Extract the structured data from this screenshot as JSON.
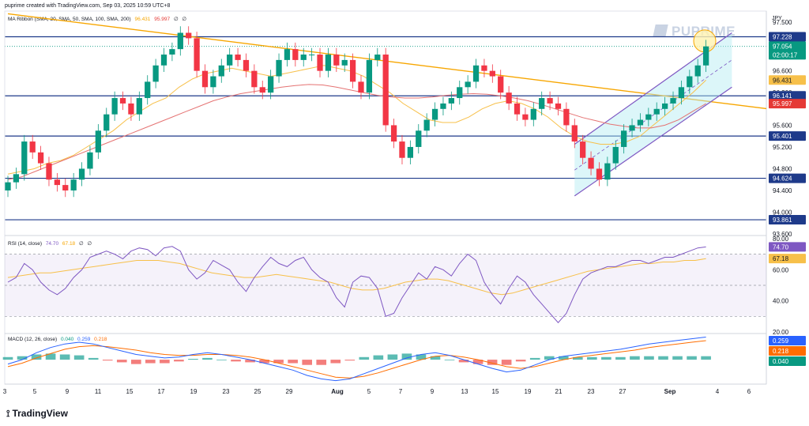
{
  "header": {
    "credit": "puprime created with TradingView.com, Sep 03, 2025 10:59 UTC+8"
  },
  "watermark": "PUPRIME",
  "currency": "JPY",
  "branding": {
    "logo_text": "TradingView",
    "icon": "tradingview-logo-icon"
  },
  "colors": {
    "bull": "#089981",
    "bear": "#f23645",
    "trend": "#f7a600",
    "channel": "#7e57c2",
    "level": "#1e3a8a",
    "sma20": "#f7c04a",
    "sma_long": "#e57373",
    "rsi": "#7e57c2",
    "rsi_ma": "#f7c04a",
    "macd": "#2962ff",
    "signal": "#ff6d00"
  },
  "legends": {
    "price": {
      "name": "MA Ribbon (SMA, 20, SMA, 50, SMA, 100, SMA, 200)",
      "v1": "96.431",
      "v2": "95.997",
      "v3": "∅",
      "v4": "∅"
    },
    "rsi": {
      "name": "RSI (14, close)",
      "v1": "74.70",
      "v2": "67.18",
      "v3": "∅",
      "v4": "∅"
    },
    "macd": {
      "name": "MACD (12, 26, close)",
      "v1": "0.040",
      "v2": "0.259",
      "v3": "0.218"
    }
  },
  "chart_data": [
    {
      "type": "candlestick",
      "symbol_currency": "JPY",
      "y_ticks": [
        "97.500",
        "97.000",
        "96.600",
        "96.200",
        "95.600",
        "95.200",
        "94.800",
        "94.400",
        "94.000",
        "93.600"
      ],
      "ylim": [
        93.6,
        97.7
      ],
      "x_ticks": [
        "3",
        "5",
        "9",
        "11",
        "15",
        "17",
        "19",
        "23",
        "25",
        "29",
        "Aug",
        "5",
        "7",
        "9",
        "13",
        "15",
        "19",
        "21",
        "23",
        "27",
        "Sep",
        "4",
        "6"
      ],
      "levels": [
        97.228,
        96.141,
        95.401,
        94.624,
        93.861
      ],
      "price_tags": [
        {
          "label": "97.228",
          "style": "level"
        },
        {
          "label": "97.054",
          "style": "last"
        },
        {
          "label": "02:00:17",
          "style": "last"
        },
        {
          "label": "96.431",
          "style": "sma20"
        },
        {
          "label": "96.141",
          "style": "level"
        },
        {
          "label": "95.997",
          "style": "sma_long"
        },
        {
          "label": "95.401",
          "style": "level"
        },
        {
          "label": "94.624",
          "style": "level"
        },
        {
          "label": "93.861",
          "style": "level"
        }
      ],
      "closes": [
        94.55,
        94.7,
        95.3,
        95.1,
        94.9,
        94.6,
        94.5,
        94.4,
        94.6,
        94.8,
        95.1,
        95.5,
        95.8,
        96.1,
        96.0,
        95.8,
        96.1,
        96.4,
        96.7,
        96.9,
        97.0,
        97.3,
        97.2,
        96.6,
        96.3,
        96.5,
        96.7,
        96.9,
        96.8,
        96.6,
        96.3,
        96.2,
        96.5,
        96.8,
        97.0,
        96.8,
        96.9,
        96.9,
        96.6,
        96.9,
        96.7,
        96.8,
        96.4,
        96.2,
        96.8,
        96.9,
        95.6,
        95.3,
        95.0,
        95.2,
        95.5,
        95.7,
        95.9,
        96.0,
        96.1,
        96.3,
        96.4,
        96.7,
        96.6,
        96.5,
        96.2,
        96.0,
        95.8,
        95.7,
        95.9,
        96.1,
        96.0,
        95.9,
        95.6,
        95.3,
        95.0,
        94.8,
        94.6,
        94.9,
        95.2,
        95.5,
        95.6,
        95.7,
        95.8,
        95.9,
        96.0,
        96.1,
        96.3,
        96.5,
        96.7,
        97.05
      ],
      "sma20": [
        94.7,
        94.75,
        94.8,
        94.9,
        94.95,
        95.05,
        95.2,
        95.35,
        95.5,
        95.7,
        95.85,
        96.0,
        96.1,
        96.3,
        96.45,
        96.55,
        96.6,
        96.65,
        96.6,
        96.55,
        96.5,
        96.55,
        96.6,
        96.65,
        96.7,
        96.65,
        96.6,
        96.5,
        96.35,
        96.2,
        96.0,
        95.85,
        95.7,
        95.65,
        95.65,
        95.75,
        95.9,
        96.0,
        96.05,
        96.0,
        95.9,
        95.75,
        95.55,
        95.4,
        95.3,
        95.25,
        95.25,
        95.3,
        95.4,
        95.6,
        95.8,
        96.0,
        96.2,
        96.43
      ],
      "sma_long": [
        94.6,
        94.65,
        94.75,
        94.85,
        94.95,
        95.05,
        95.15,
        95.25,
        95.35,
        95.45,
        95.55,
        95.65,
        95.75,
        95.85,
        95.95,
        96.05,
        96.12,
        96.18,
        96.22,
        96.26,
        96.3,
        96.33,
        96.35,
        96.34,
        96.3,
        96.25,
        96.2,
        96.15,
        96.12,
        96.1,
        96.1,
        96.12,
        96.15,
        96.17,
        96.18,
        96.17,
        96.14,
        96.1,
        96.05,
        95.98,
        95.9,
        95.82,
        95.74,
        95.68,
        95.62,
        95.58,
        95.55,
        95.55,
        95.6,
        95.7,
        95.85,
        95.997
      ],
      "trendline": {
        "from": {
          "bar": 0,
          "y": 97.65
        },
        "to": {
          "bar": 90,
          "y": 95.95
        }
      },
      "channel": {
        "lower": {
          "from_bar": 69,
          "from_y": 94.3,
          "to_bar": 87,
          "to_y": 96.3
        },
        "upper": {
          "from_bar": 69,
          "from_y": 95.25,
          "to_bar": 87,
          "to_y": 97.3
        }
      }
    },
    {
      "type": "line",
      "name": "RSI (14, close)",
      "y_ticks": [
        "80.00",
        "60.00",
        "40.00",
        "20.00"
      ],
      "ylim": [
        20,
        82
      ],
      "bands": [
        70,
        50,
        30
      ],
      "value_tags": [
        "74.70",
        "67.18"
      ],
      "rsi": [
        52,
        55,
        64,
        60,
        52,
        47,
        44,
        48,
        55,
        60,
        68,
        70,
        72,
        70,
        67,
        72,
        74,
        73,
        69,
        74,
        75,
        72,
        60,
        54,
        58,
        66,
        63,
        60,
        52,
        46,
        55,
        62,
        68,
        64,
        62,
        66,
        68,
        60,
        55,
        52,
        42,
        36,
        52,
        56,
        55,
        48,
        30,
        32,
        42,
        50,
        58,
        54,
        62,
        60,
        56,
        64,
        70,
        66,
        52,
        44,
        38,
        48,
        56,
        52,
        44,
        38,
        32,
        26,
        32,
        44,
        54,
        58,
        60,
        62,
        62,
        64,
        66,
        66,
        64,
        66,
        68,
        68,
        70,
        72,
        74,
        74.7
      ],
      "rsi_ma": [
        55,
        56,
        57,
        58,
        58,
        59,
        60,
        61,
        62,
        63,
        64,
        65,
        66,
        66,
        66,
        65,
        64,
        62,
        60,
        58,
        57,
        56,
        55,
        55,
        56,
        57,
        56,
        55,
        54,
        53,
        52,
        50,
        48,
        47,
        47,
        48,
        50,
        52,
        53,
        54,
        54,
        53,
        51,
        49,
        47,
        45,
        44,
        45,
        47,
        49,
        51,
        53,
        55,
        57,
        59,
        60,
        61,
        62,
        63,
        64,
        64,
        65,
        65,
        66,
        66,
        67.18
      ]
    },
    {
      "type": "histogram+line",
      "name": "MACD (12, 26, close)",
      "value_tags": [
        "0.259",
        "0.218",
        "0.040"
      ],
      "macd": [
        -0.05,
        0.0,
        0.08,
        0.14,
        0.18,
        0.2,
        0.18,
        0.14,
        0.1,
        0.06,
        0.04,
        0.02,
        0.03,
        0.06,
        0.08,
        0.06,
        0.03,
        0.0,
        -0.04,
        -0.08,
        -0.12,
        -0.18,
        -0.22,
        -0.24,
        -0.22,
        -0.16,
        -0.1,
        -0.04,
        0.02,
        0.06,
        0.08,
        0.05,
        0.0,
        -0.05,
        -0.1,
        -0.14,
        -0.12,
        -0.06,
        0.0,
        0.04,
        0.06,
        0.08,
        0.1,
        0.12,
        0.15,
        0.18,
        0.2,
        0.22,
        0.24,
        0.259
      ],
      "signal": [
        -0.08,
        -0.04,
        0.02,
        0.07,
        0.12,
        0.15,
        0.16,
        0.15,
        0.13,
        0.11,
        0.08,
        0.06,
        0.05,
        0.05,
        0.06,
        0.06,
        0.05,
        0.03,
        0.0,
        -0.04,
        -0.08,
        -0.12,
        -0.16,
        -0.2,
        -0.21,
        -0.19,
        -0.15,
        -0.1,
        -0.05,
        0.0,
        0.04,
        0.05,
        0.03,
        0.0,
        -0.04,
        -0.08,
        -0.1,
        -0.08,
        -0.04,
        0.0,
        0.03,
        0.05,
        0.07,
        0.09,
        0.11,
        0.14,
        0.16,
        0.18,
        0.2,
        0.218
      ],
      "histogram": [
        0.03,
        0.04,
        0.06,
        0.07,
        0.06,
        0.05,
        0.02,
        -0.01,
        -0.03,
        -0.05,
        -0.04,
        -0.04,
        -0.02,
        0.01,
        0.02,
        0.0,
        -0.02,
        -0.03,
        -0.04,
        -0.04,
        -0.04,
        -0.06,
        -0.06,
        -0.04,
        -0.01,
        0.03,
        0.05,
        0.06,
        0.07,
        0.06,
        0.04,
        0.0,
        -0.03,
        -0.05,
        -0.06,
        -0.06,
        -0.02,
        0.02,
        0.04,
        0.04,
        0.03,
        0.03,
        0.03,
        0.03,
        0.04,
        0.04,
        0.04,
        0.04,
        0.04,
        0.04
      ]
    }
  ]
}
